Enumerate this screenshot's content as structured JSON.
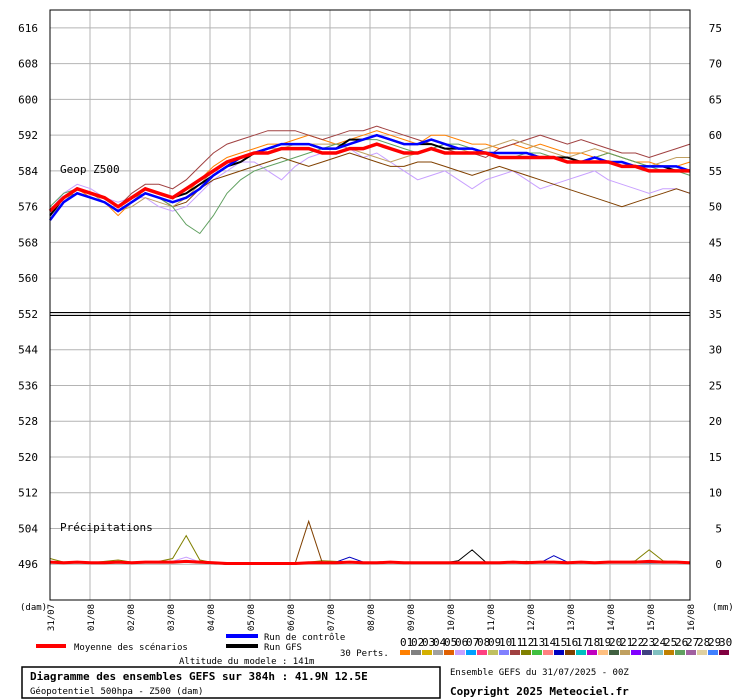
{
  "chart_data": {
    "type": "line",
    "left_axis": {
      "min": 488,
      "max": 620,
      "ticks": [
        496,
        504,
        512,
        520,
        528,
        536,
        544,
        552,
        560,
        568,
        576,
        584,
        592,
        600,
        608,
        616
      ],
      "unit": "(dam)"
    },
    "right_axis": {
      "min": 0,
      "max": 75,
      "ticks": [
        0,
        5,
        10,
        15,
        20,
        25,
        30,
        35,
        40,
        45,
        50,
        55,
        60,
        65,
        70,
        75
      ],
      "unit": "(mm)"
    },
    "x_ticks": [
      "31/07",
      "01/08",
      "02/08",
      "03/08",
      "04/08",
      "05/08",
      "06/08",
      "07/08",
      "08/08",
      "09/08",
      "10/08",
      "11/08",
      "12/08",
      "13/08",
      "14/08",
      "15/08",
      "16/08"
    ],
    "grid": true,
    "upper_label": "Geop Z500",
    "lower_label": "Précipitations",
    "reference_line_dam": 552,
    "mean_z500": [
      575,
      578,
      580,
      579,
      578,
      576,
      578,
      580,
      579,
      578,
      580,
      582,
      584,
      586,
      587,
      588,
      588,
      589,
      589,
      589,
      588,
      588,
      589,
      589,
      590,
      589,
      588,
      588,
      589,
      588,
      588,
      588,
      588,
      587,
      587,
      587,
      587,
      587,
      586,
      586,
      586,
      586,
      585,
      585,
      584,
      584,
      584,
      584
    ],
    "control_z500": [
      573,
      577,
      579,
      578,
      577,
      575,
      577,
      579,
      578,
      577,
      578,
      580,
      583,
      585,
      587,
      588,
      589,
      590,
      590,
      590,
      589,
      589,
      590,
      591,
      592,
      591,
      590,
      590,
      591,
      590,
      589,
      589,
      588,
      588,
      588,
      588,
      587,
      587,
      586,
      586,
      587,
      586,
      586,
      585,
      585,
      585,
      585,
      584
    ],
    "gfs_z500": [
      574,
      578,
      580,
      579,
      578,
      576,
      578,
      580,
      579,
      578,
      579,
      581,
      583,
      585,
      586,
      588,
      589,
      590,
      590,
      590,
      589,
      589,
      591,
      591,
      592,
      591,
      590,
      590,
      590,
      589,
      589,
      589,
      588,
      588,
      588,
      588,
      587,
      587,
      587,
      586,
      586,
      586,
      585,
      585,
      585,
      585,
      584,
      584
    ],
    "member_z500": [
      [
        574,
        578,
        580,
        578,
        577,
        574,
        577,
        580,
        579,
        578,
        579,
        582,
        585,
        587,
        588,
        589,
        590,
        590,
        591,
        592,
        591,
        590,
        591,
        592,
        593,
        592,
        591,
        590,
        592,
        592,
        591,
        590,
        590,
        589,
        590,
        589,
        590,
        589,
        588,
        588,
        587,
        588,
        587,
        586,
        586,
        585,
        585,
        586
      ],
      [
        575,
        579,
        581,
        580,
        578,
        577,
        578,
        578,
        576,
        575,
        576,
        579,
        582,
        584,
        586,
        586,
        584,
        582,
        585,
        587,
        588,
        588,
        589,
        587,
        588,
        586,
        584,
        582,
        583,
        584,
        582,
        580,
        582,
        583,
        584,
        582,
        580,
        581,
        582,
        583,
        584,
        582,
        581,
        580,
        579,
        580,
        580,
        579
      ],
      [
        573,
        577,
        580,
        579,
        578,
        576,
        579,
        581,
        581,
        580,
        582,
        585,
        588,
        590,
        591,
        592,
        593,
        593,
        593,
        592,
        591,
        592,
        593,
        593,
        594,
        593,
        592,
        591,
        590,
        589,
        588,
        588,
        587,
        589,
        590,
        591,
        592,
        591,
        590,
        591,
        590,
        589,
        588,
        588,
        587,
        588,
        589,
        590
      ],
      [
        575,
        578,
        579,
        578,
        577,
        575,
        577,
        579,
        578,
        576,
        577,
        580,
        582,
        583,
        584,
        585,
        586,
        587,
        586,
        585,
        586,
        587,
        588,
        587,
        586,
        585,
        585,
        586,
        586,
        585,
        584,
        583,
        584,
        585,
        584,
        583,
        582,
        581,
        580,
        579,
        578,
        577,
        576,
        577,
        578,
        579,
        580,
        579
      ],
      [
        574,
        577,
        580,
        579,
        577,
        575,
        576,
        578,
        577,
        576,
        578,
        581,
        584,
        586,
        587,
        588,
        589,
        589,
        590,
        590,
        590,
        590,
        589,
        588,
        587,
        586,
        587,
        588,
        589,
        590,
        589,
        588,
        589,
        590,
        591,
        590,
        589,
        588,
        587,
        588,
        589,
        588,
        587,
        586,
        585,
        586,
        587,
        587
      ],
      [
        576,
        579,
        580,
        579,
        578,
        576,
        578,
        579,
        578,
        576,
        572,
        570,
        574,
        579,
        582,
        584,
        585,
        586,
        587,
        588,
        589,
        590,
        590,
        591,
        591,
        590,
        589,
        588,
        589,
        590,
        590,
        589,
        588,
        587,
        587,
        588,
        588,
        587,
        586,
        586,
        587,
        588,
        587,
        586,
        585,
        584,
        584,
        583
      ]
    ],
    "mean_precip": [
      0.3,
      0.2,
      0.3,
      0.2,
      0.2,
      0.3,
      0.2,
      0.3,
      0.3,
      0.3,
      0.4,
      0.3,
      0.2,
      0.1,
      0.1,
      0.1,
      0.1,
      0.1,
      0.1,
      0.2,
      0.2,
      0.2,
      0.3,
      0.2,
      0.2,
      0.3,
      0.2,
      0.2,
      0.2,
      0.2,
      0.2,
      0.2,
      0.2,
      0.2,
      0.3,
      0.2,
      0.3,
      0.3,
      0.2,
      0.3,
      0.2,
      0.3,
      0.3,
      0.3,
      0.4,
      0.3,
      0.3,
      0.2
    ],
    "member_precip": [
      [
        0.8,
        0.3,
        0.2,
        0.2,
        0.4,
        0.6,
        0.3,
        0.2,
        0.4,
        0.8,
        4.0,
        0.6,
        0.2,
        0.0,
        0.0,
        0.0,
        0.0,
        0.0,
        0.0,
        0.3,
        0.5,
        0.4,
        0.2,
        0.3,
        0.2,
        0.2,
        0.1,
        0.2,
        0.1,
        0.3,
        0.2,
        0.2,
        0.2,
        0.3,
        0.2,
        0.4,
        0.2,
        0.3,
        0.2,
        0.3,
        0.2,
        0.4,
        0.2,
        0.5,
        2.0,
        0.5,
        0.2,
        0.2
      ],
      [
        0.2,
        0.2,
        0.2,
        0.2,
        0.2,
        0.2,
        0.2,
        0.2,
        0.2,
        0.4,
        1.0,
        0.3,
        0.2,
        0.0,
        0.0,
        0.0,
        0.0,
        0.0,
        0.0,
        0.2,
        0.2,
        0.2,
        0.2,
        0.2,
        0.2,
        0.2,
        0.2,
        0.2,
        0.2,
        0.2,
        0.2,
        0.2,
        0.2,
        0.2,
        0.2,
        0.2,
        0.2,
        0.2,
        0.2,
        0.2,
        0.2,
        0.2,
        0.2,
        0.2,
        0.3,
        0.2,
        0.2,
        0.2
      ],
      [
        0.4,
        0.3,
        0.2,
        0.3,
        0.2,
        0.2,
        0.2,
        0.3,
        0.3,
        0.3,
        0.3,
        0.2,
        0.1,
        0.0,
        0.0,
        0.0,
        0.0,
        0.1,
        0.1,
        6.0,
        0.2,
        0.2,
        0.2,
        0.2,
        0.2,
        0.3,
        0.3,
        0.2,
        0.2,
        0.2,
        0.3,
        0.3,
        0.2,
        0.3,
        0.2,
        0.4,
        0.2,
        0.3,
        0.2,
        0.3,
        0.2,
        0.2,
        0.2,
        0.3,
        0.3,
        0.2,
        0.2,
        0.2
      ],
      [
        0.2,
        0.2,
        0.3,
        0.2,
        0.2,
        0.2,
        0.2,
        0.2,
        0.2,
        0.3,
        0.3,
        0.2,
        0.1,
        0.0,
        0.0,
        0.0,
        0.0,
        0.0,
        0.0,
        0.2,
        0.2,
        0.3,
        1.0,
        0.3,
        0.2,
        0.2,
        0.2,
        0.2,
        0.2,
        0.2,
        0.2,
        0.2,
        0.2,
        0.2,
        0.3,
        0.3,
        0.2,
        1.2,
        0.3,
        0.2,
        0.2,
        0.2,
        0.2,
        0.2,
        0.2,
        0.2,
        0.2,
        0.2
      ],
      [
        0.3,
        0.2,
        0.2,
        0.2,
        0.2,
        0.2,
        0.2,
        0.2,
        0.2,
        0.3,
        0.3,
        0.2,
        0.1,
        0.0,
        0.0,
        0.0,
        0.0,
        0.0,
        0.0,
        0.2,
        0.2,
        0.2,
        0.2,
        0.2,
        0.2,
        0.2,
        0.2,
        0.3,
        0.3,
        0.2,
        0.5,
        2.0,
        0.3,
        0.2,
        0.3,
        0.2,
        0.3,
        0.2,
        0.2,
        0.3,
        0.2,
        0.3,
        0.2,
        0.2,
        0.2,
        0.2,
        0.3,
        0.2
      ]
    ],
    "member_colors": [
      "#ff8000",
      "#808080",
      "#d4b000",
      "#a0a0a0",
      "#e06000",
      "#c8a0ff",
      "#00a0ff",
      "#ff4080",
      "#c0c060",
      "#8080ff",
      "#a04040",
      "#808000",
      "#40c040",
      "#ff8080",
      "#0000c0",
      "#804000",
      "#00c0c0",
      "#c000c0",
      "#ffc080",
      "#406040",
      "#c0a060",
      "#8000ff",
      "#404080",
      "#80c0c0",
      "#c08000",
      "#60a060",
      "#a060a0",
      "#e0d0a0",
      "#4080ff",
      "#800040"
    ],
    "precip_member_colors": [
      "#808000",
      "#c8a0ff",
      "#804000",
      "#0000c0",
      "#000000"
    ]
  },
  "legend": {
    "mean_label": "Moyenne des scénarios",
    "control_label": "Run de contrôle",
    "gfs_label": "Run GFS",
    "mean_color": "#ff0000",
    "control_color": "#0000ff",
    "gfs_color": "#000000",
    "perts_label": "30 Perts.",
    "pert_numbers": [
      "01",
      "02",
      "03",
      "04",
      "05",
      "06",
      "07",
      "08",
      "09",
      "10",
      "11",
      "12",
      "13",
      "14",
      "15",
      "16",
      "17",
      "18",
      "19",
      "20",
      "21",
      "22",
      "23",
      "24",
      "25",
      "26",
      "27",
      "28",
      "29",
      "30"
    ],
    "pert_colors": [
      "#ff8000",
      "#808080",
      "#d4b000",
      "#a0a0a0",
      "#e06000",
      "#c8a0ff",
      "#00a0ff",
      "#ff4080",
      "#c0c060",
      "#8080ff",
      "#a04040",
      "#808000",
      "#40c040",
      "#ff8080",
      "#0000c0",
      "#804000",
      "#00c0c0",
      "#c000c0",
      "#ffc080",
      "#406040",
      "#c0a060",
      "#8000ff",
      "#404080",
      "#80c0c0",
      "#c08000",
      "#60a060",
      "#a060a0",
      "#e0d0a0",
      "#4080ff",
      "#800040"
    ]
  },
  "footer": {
    "altitude": "Altitude du modele : 141m",
    "title_line1": "Diagramme des ensembles GEFS sur 384h : 41.9N 12.5E",
    "title_line2": "Géopotentiel 500hpa - Z500 (dam)",
    "ensemble_info": "Ensemble GEFS du 31/07/2025 - 00Z",
    "copyright": "Copyright 2025 Meteociel.fr"
  }
}
